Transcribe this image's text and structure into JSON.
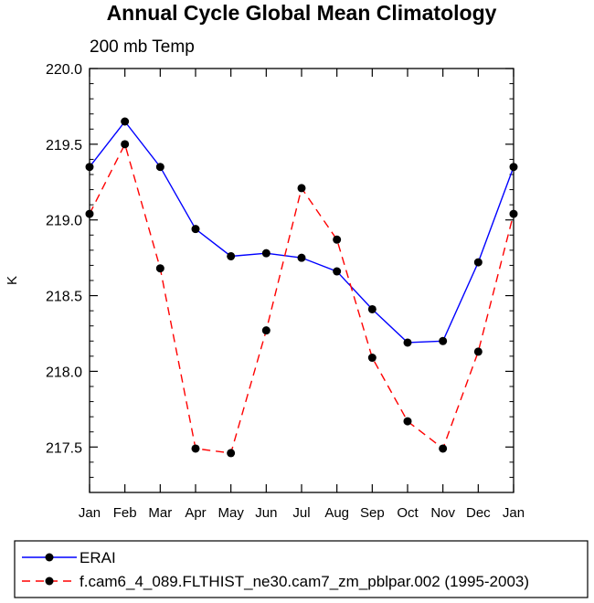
{
  "chart_data": {
    "type": "line",
    "title": "Annual Cycle Global Mean Climatology",
    "subtitle": "200 mb Temp",
    "xlabel": "",
    "ylabel": "K",
    "categories": [
      "Jan",
      "Feb",
      "Mar",
      "Apr",
      "May",
      "Jun",
      "Jul",
      "Aug",
      "Sep",
      "Oct",
      "Nov",
      "Dec",
      "Jan"
    ],
    "ylim": [
      217.2,
      220.0
    ],
    "y_ticks": [
      "217.5",
      "218.0",
      "218.5",
      "219.0",
      "219.5",
      "220.0"
    ],
    "y_tick_values": [
      217.5,
      218.0,
      218.5,
      219.0,
      219.5,
      220.0
    ],
    "series": [
      {
        "name": "ERAI",
        "color": "#0000ff",
        "style": "solid",
        "values": [
          219.35,
          219.65,
          219.35,
          218.94,
          218.76,
          218.78,
          218.75,
          218.66,
          218.41,
          218.19,
          218.2,
          218.72,
          219.35
        ]
      },
      {
        "name": "f.cam6_4_089.FLTHIST_ne30.cam7_zm_pblpar.002 (1995-2003)",
        "color": "#ff0000",
        "style": "dashed",
        "values": [
          219.04,
          219.5,
          218.68,
          217.49,
          217.46,
          218.27,
          219.21,
          218.87,
          218.09,
          217.67,
          217.49,
          218.13,
          219.04
        ]
      }
    ],
    "legend_position": "bottom"
  }
}
